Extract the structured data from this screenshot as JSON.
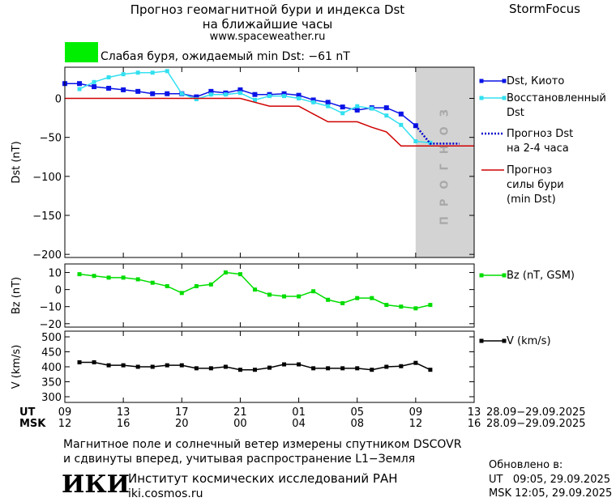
{
  "header": {
    "title": "Прогноз геомагнитной бури и индекса Dst\nна ближайшие часы",
    "url": "www.spaceweather.ru",
    "brand": "StormFocus"
  },
  "status": {
    "text": "Слабая буря, ожидаемый min Dst: −61 nT",
    "color": "#00ee00"
  },
  "chart_data": [
    {
      "type": "line",
      "ylabel": "Dst (nT)",
      "xlim": [
        0,
        28
      ],
      "ylim": [
        -204,
        40
      ],
      "yticks": [
        0,
        {
          "value": -50,
          "label": "−50"
        },
        {
          "value": -100,
          "label": "−100"
        },
        {
          "value": -150,
          "label": "−150"
        },
        {
          "value": -200,
          "label": "−200"
        }
      ],
      "forecast_region": {
        "xlim": [
          24,
          28
        ],
        "label": "ПРОГНОЗ",
        "color": "#d3d3d3"
      },
      "series": [
        {
          "name": "Dst, Киото",
          "color": "#0a14e6",
          "marker": "square",
          "x": [
            0,
            1,
            2,
            3,
            4,
            5,
            6,
            7,
            8,
            9,
            10,
            11,
            12,
            13,
            14,
            15,
            16,
            17,
            18,
            19,
            20,
            21,
            22,
            23,
            24
          ],
          "values": [
            19,
            19,
            15,
            13,
            11,
            9,
            6,
            6,
            6,
            2,
            9,
            7,
            11,
            5,
            5,
            6,
            4,
            -2,
            -5,
            -11,
            -15,
            -12,
            -12,
            -20,
            -35
          ]
        },
        {
          "name": "Восстановленный\nDst",
          "color": "#33e0f0",
          "marker": "square",
          "x": [
            1,
            2,
            3,
            4,
            5,
            6,
            7,
            8,
            9,
            10,
            11,
            12,
            13,
            14,
            15,
            16,
            17,
            18,
            19,
            20,
            21,
            22,
            23,
            24,
            25
          ],
          "values": [
            12,
            21,
            27,
            31,
            33,
            33,
            35,
            6,
            -1,
            5,
            5,
            7,
            -2,
            3,
            3,
            0,
            -5,
            -10,
            -19,
            -10,
            -13,
            -22,
            -34,
            -55,
            -57
          ]
        },
        {
          "name": "Прогноз Dst\nна 2-4 часа",
          "color": "#0000cc",
          "style": "dotted",
          "x": [
            24,
            25,
            26,
            27
          ],
          "values": [
            -35,
            -58,
            -58,
            -58
          ]
        },
        {
          "name": "Прогноз\nсилы бури\n(min Dst)",
          "color": "#d00000",
          "x": [
            0,
            12,
            14,
            16,
            17,
            18,
            20,
            21,
            22,
            23,
            28
          ],
          "values": [
            0,
            0,
            -10,
            -10,
            -20,
            -30,
            -30,
            -37,
            -43,
            -61,
            -61
          ]
        }
      ]
    },
    {
      "type": "line",
      "ylabel": "Bz (nT)",
      "xlim": [
        0,
        28
      ],
      "ylim": [
        -22,
        15
      ],
      "yticks": [
        10,
        0,
        {
          "value": -10,
          "label": "−10"
        },
        {
          "value": -20,
          "label": "−20"
        }
      ],
      "series": [
        {
          "name": "Bz (nT, GSM)",
          "color": "#00dd00",
          "marker": "square",
          "x": [
            1,
            2,
            3,
            4,
            5,
            6,
            7,
            8,
            9,
            10,
            11,
            12,
            13,
            14,
            15,
            16,
            17,
            18,
            19,
            20,
            21,
            22,
            23,
            24,
            25
          ],
          "values": [
            9,
            8,
            7,
            7,
            6,
            4,
            2,
            -2,
            2,
            3,
            10,
            9,
            0,
            -3,
            -4,
            -4,
            -1,
            -6,
            -8,
            -5,
            -5,
            -9,
            -10,
            -11,
            -9
          ]
        }
      ]
    },
    {
      "type": "line",
      "ylabel": "V (km/s)",
      "xlim": [
        0,
        28
      ],
      "ylim": [
        281,
        519
      ],
      "yticks": [
        300,
        350,
        400,
        450,
        500
      ],
      "xticks": [
        {
          "value": 0,
          "label": "09"
        },
        {
          "value": 4,
          "label": "13"
        },
        {
          "value": 8,
          "label": "17"
        },
        {
          "value": 12,
          "label": "21"
        },
        {
          "value": 16,
          "label": "01"
        },
        {
          "value": 20,
          "label": "05"
        },
        {
          "value": 24,
          "label": "09"
        },
        {
          "value": 28,
          "label": "13"
        }
      ],
      "msk_labels": [
        "12",
        "16",
        "20",
        "00",
        "04",
        "08",
        "12",
        "16"
      ],
      "ut_label": "UT",
      "msk_label": "MSK",
      "date_range": "28.09−29.09.2025",
      "series": [
        {
          "name": "V (km/s)",
          "color": "#000000",
          "marker": "square",
          "x": [
            1,
            2,
            3,
            4,
            5,
            6,
            7,
            8,
            9,
            10,
            11,
            12,
            13,
            14,
            15,
            16,
            17,
            18,
            19,
            20,
            21,
            22,
            23,
            24,
            25
          ],
          "values": [
            415,
            415,
            405,
            405,
            400,
            400,
            405,
            405,
            395,
            395,
            400,
            390,
            390,
            397,
            408,
            408,
            395,
            395,
            395,
            395,
            390,
            400,
            402,
            413,
            390
          ]
        }
      ]
    }
  ],
  "footer": {
    "note": "Магнитное поле и солнечный ветер измерены спутником DSCOVR\nи сдвинуты вперед, учитывая распространение L1−Земля",
    "updated": "Обновлено в:",
    "updated_ut": "UT   09:05, 29.09.2025",
    "updated_msk": "MSK 12:05, 29.09.2025",
    "logo": "ИКИ",
    "institute": "Институт космических исследований РАН",
    "institute_url": "iki.cosmos.ru"
  }
}
